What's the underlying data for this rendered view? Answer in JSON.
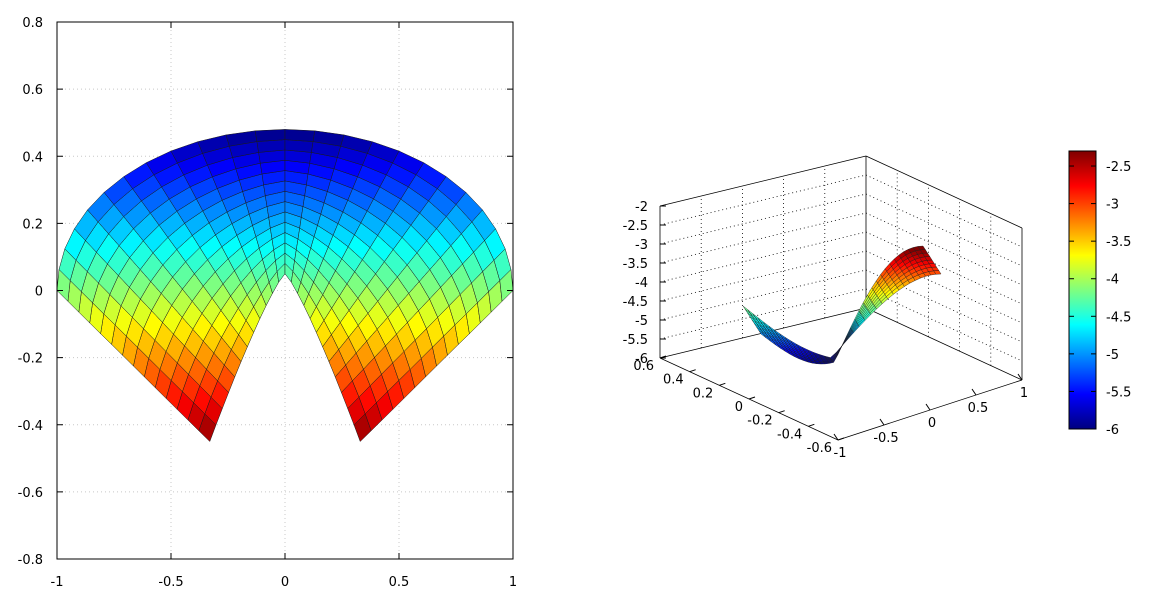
{
  "chart_data": [
    {
      "type": "heatmap",
      "title": "",
      "xlabel": "",
      "ylabel": "",
      "xlim": [
        -1,
        1
      ],
      "ylim": [
        -0.8,
        0.8
      ],
      "xticks": [
        "-1",
        "-0.5",
        "0",
        "0.5",
        "1"
      ],
      "yticks": [
        "0.8",
        "0.6",
        "0.4",
        "0.2",
        "0",
        "-0.2",
        "-0.4",
        "-0.6",
        "-0.8"
      ],
      "grid": true,
      "surface": {
        "description_values": {
          "outer_arc_top": [
            0,
            0.48
          ],
          "inner_arc_top": [
            0,
            0.05
          ],
          "left_tip": [
            -1,
            0
          ],
          "right_tip": [
            1,
            0
          ],
          "left_bottom": [
            -0.33,
            -0.45
          ],
          "right_bottom": [
            0.33,
            -0.45
          ]
        },
        "color_min": -6,
        "color_max": -2.3
      }
    },
    {
      "type": "surface3d",
      "title": "",
      "zticks": [
        "-2",
        "-2.5",
        "-3",
        "-3.5",
        "-4",
        "-4.5",
        "-5",
        "-5.5",
        "-6"
      ],
      "yticks": [
        "0.6",
        "0.4",
        "0.2",
        "0",
        "-0.2",
        "-0.4",
        "-0.6"
      ],
      "xticks": [
        "-1",
        "-0.5",
        "0",
        "0.5",
        "1"
      ],
      "zlim": [
        -6,
        -2
      ],
      "colorbar": {
        "ticks": [
          "-2.5",
          "-3",
          "-3.5",
          "-4",
          "-4.5",
          "-5",
          "-5.5",
          "-6"
        ],
        "min": -6,
        "max": -2.3
      }
    }
  ],
  "colors": {
    "colormap": [
      "#00007f",
      "#0000ff",
      "#007fff",
      "#00ffff",
      "#7fff7f",
      "#ffff00",
      "#ff7f00",
      "#ff0000",
      "#7f0000"
    ],
    "grid": "#c8c8c8",
    "axis": "#000000"
  }
}
